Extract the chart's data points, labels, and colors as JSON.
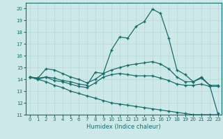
{
  "xlabel": "Humidex (Indice chaleur)",
  "xlim": [
    -0.5,
    23.5
  ],
  "ylim": [
    11,
    20.5
  ],
  "yticks": [
    11,
    12,
    13,
    14,
    15,
    16,
    17,
    18,
    19,
    20
  ],
  "xticks": [
    0,
    1,
    2,
    3,
    4,
    5,
    6,
    7,
    8,
    9,
    10,
    11,
    12,
    13,
    14,
    15,
    16,
    17,
    18,
    19,
    20,
    21,
    22,
    23
  ],
  "bg_color": "#cce8e8",
  "line_color": "#1a6b6b",
  "grid_color": "#b8d8d8",
  "line1": [
    14.2,
    14.0,
    14.2,
    14.1,
    13.9,
    13.8,
    13.6,
    13.5,
    14.6,
    14.5,
    16.5,
    17.6,
    17.5,
    18.5,
    18.9,
    19.95,
    19.6,
    17.5,
    14.8,
    14.4,
    13.8,
    14.2,
    13.5,
    11.1
  ],
  "line2": [
    14.2,
    14.1,
    14.9,
    14.8,
    14.5,
    14.2,
    14.0,
    13.7,
    14.0,
    14.5,
    14.8,
    15.0,
    15.2,
    15.3,
    15.4,
    15.5,
    15.3,
    14.9,
    14.2,
    13.8,
    13.8,
    14.1,
    13.5,
    13.5
  ],
  "line3": [
    14.2,
    14.1,
    14.2,
    13.9,
    13.8,
    13.6,
    13.4,
    13.3,
    13.7,
    14.2,
    14.4,
    14.5,
    14.4,
    14.3,
    14.3,
    14.3,
    14.1,
    13.9,
    13.6,
    13.5,
    13.5,
    13.6,
    13.4,
    13.4
  ],
  "line4": [
    14.2,
    14.0,
    13.8,
    13.5,
    13.3,
    13.0,
    12.8,
    12.6,
    12.4,
    12.2,
    12.0,
    11.9,
    11.8,
    11.7,
    11.6,
    11.5,
    11.4,
    11.3,
    11.2,
    11.1,
    11.0,
    11.0,
    11.0,
    11.0
  ]
}
